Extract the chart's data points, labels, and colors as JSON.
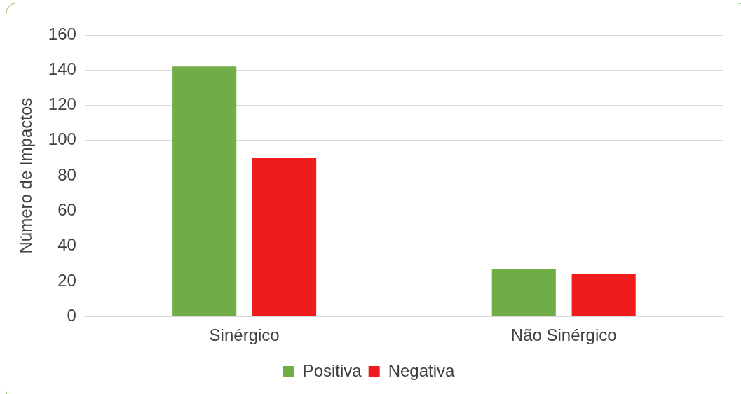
{
  "chart_data": {
    "type": "bar",
    "ylabel": "Número de Impactos",
    "categories": [
      "Sinérgico",
      "Não Sinérgico"
    ],
    "series": [
      {
        "name": "Positiva",
        "color": "#70ad47",
        "values": [
          142,
          27
        ]
      },
      {
        "name": "Negativa",
        "color": "#ee1c1c",
        "values": [
          90,
          24
        ]
      }
    ],
    "ylim": [
      0,
      160
    ],
    "yticks": [
      0,
      20,
      40,
      60,
      80,
      100,
      120,
      140,
      160
    ],
    "grid": "y",
    "legend": "bottom"
  }
}
